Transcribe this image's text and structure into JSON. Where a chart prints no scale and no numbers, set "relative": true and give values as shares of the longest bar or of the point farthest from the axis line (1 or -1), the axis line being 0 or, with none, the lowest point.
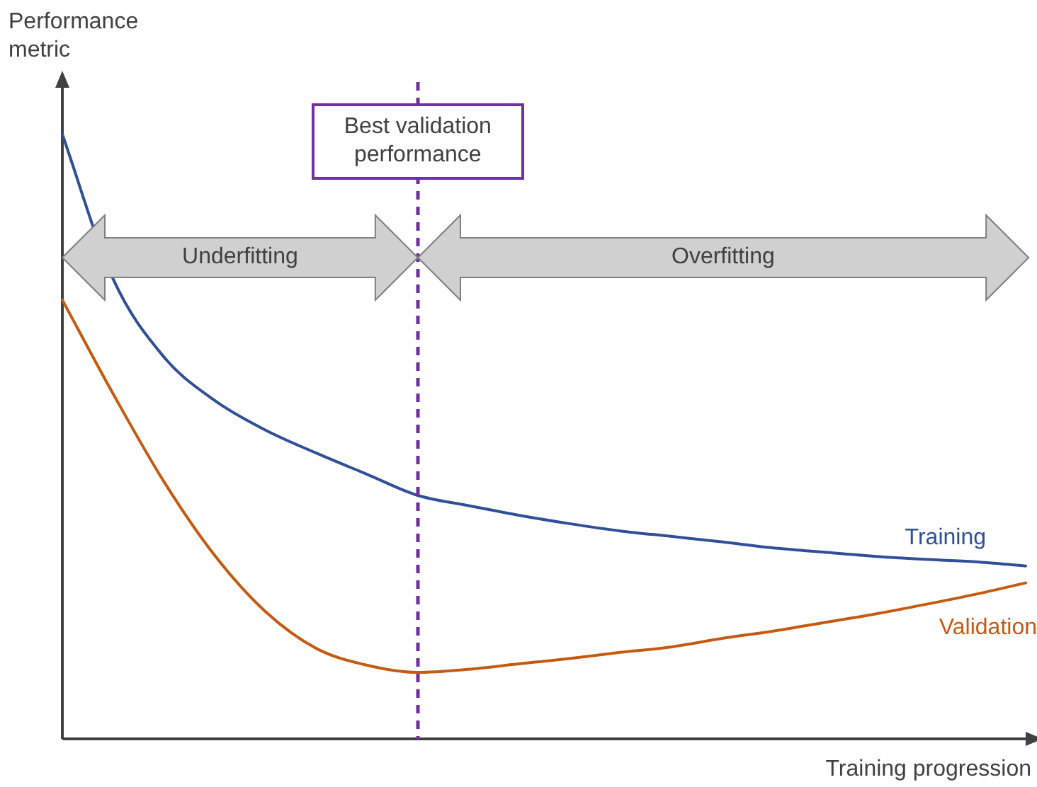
{
  "chart_data": {
    "type": "line",
    "relative": true,
    "xlabel": "Training progression",
    "ylabel": "Performance metric",
    "categories": [
      null,
      null,
      null,
      null,
      null,
      null,
      null,
      null,
      null,
      null,
      null,
      null,
      null,
      null,
      null,
      null,
      null,
      null,
      null,
      null
    ],
    "series": [
      {
        "name": "Training",
        "color": "#2f4f98",
        "values": [
          1.0,
          0.761,
          0.632,
          0.56,
          0.511,
          0.473,
          0.438,
          0.403,
          0.386,
          0.37,
          0.356,
          0.344,
          0.335,
          0.326,
          0.316,
          0.309,
          0.302,
          0.297,
          0.293,
          0.286
        ]
      },
      {
        "name": "Validation",
        "color": "#c55a11",
        "values": [
          0.726,
          0.571,
          0.426,
          0.304,
          0.211,
          0.15,
          0.122,
          0.11,
          0.115,
          0.124,
          0.133,
          0.143,
          0.152,
          0.166,
          0.178,
          0.192,
          0.206,
          0.222,
          0.239,
          0.258
        ]
      }
    ],
    "annotations": [
      "Best validation performance",
      "Underfitting",
      "Overfitting"
    ],
    "marker": "none",
    "line_style": "solid"
  }
}
